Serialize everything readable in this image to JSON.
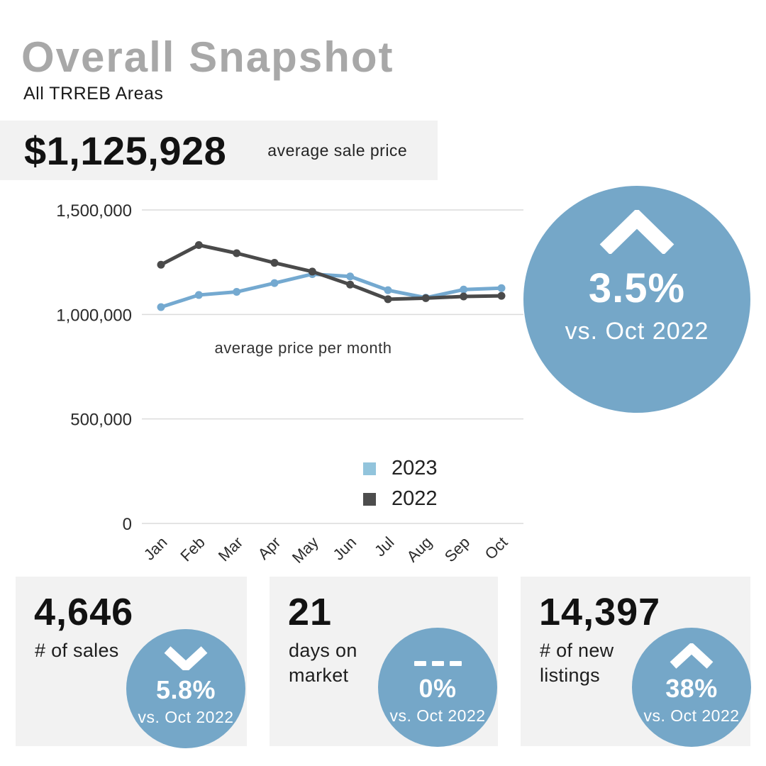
{
  "header": {
    "title": "Overall Snapshot",
    "subtitle": "All TRREB Areas"
  },
  "price_banner": {
    "value": "$1,125,928",
    "label": "average sale price"
  },
  "chart_data": {
    "type": "line",
    "title": "average price per month",
    "categories": [
      "Jan",
      "Feb",
      "Mar",
      "Apr",
      "May",
      "Jun",
      "Jul",
      "Aug",
      "Sep",
      "Oct"
    ],
    "series": [
      {
        "name": "2023",
        "color": "#74a9d0",
        "legend_color": "#92c4dc",
        "values": [
          1035000,
          1093000,
          1108000,
          1150000,
          1193000,
          1182000,
          1116000,
          1080000,
          1119000,
          1125928
        ]
      },
      {
        "name": "2022",
        "color": "#4a4a4a",
        "legend_color": "#4d4d4d",
        "values": [
          1238000,
          1332000,
          1293000,
          1247000,
          1205000,
          1143000,
          1073000,
          1078000,
          1086000,
          1089000
        ]
      }
    ],
    "ylim": [
      0,
      1500000
    ],
    "yticks": [
      {
        "value": 0,
        "label": "0"
      },
      {
        "value": 500000,
        "label": "500,000"
      },
      {
        "value": 1000000,
        "label": "1,000,000"
      },
      {
        "value": 1500000,
        "label": "1,500,000"
      }
    ],
    "grid": true,
    "legend_position": "right-bottom"
  },
  "highlight_circle": {
    "direction": "up",
    "pct": "3.5%",
    "vs": "vs. Oct 2022"
  },
  "stat_cards": [
    {
      "value": "4,646",
      "label": "# of sales",
      "badge": {
        "direction": "down",
        "pct": "5.8%",
        "vs": "vs. Oct 2022"
      }
    },
    {
      "value": "21",
      "label": "days on market",
      "badge": {
        "direction": "flat",
        "pct": "0%",
        "vs": "vs. Oct 2022"
      }
    },
    {
      "value": "14,397",
      "label": "# of new listings",
      "badge": {
        "direction": "up",
        "pct": "38%",
        "vs": "vs. Oct 2022"
      }
    }
  ],
  "colors": {
    "accent_blue": "#75a7c8",
    "card_bg": "#f2f2f2",
    "title_gray": "#a8a8a8",
    "grid_line": "#dcdcdc",
    "axis_text": "#2b2b2b",
    "white": "#ffffff"
  }
}
